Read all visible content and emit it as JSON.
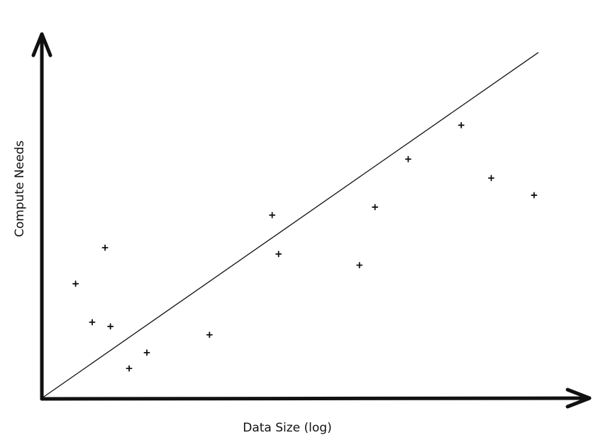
{
  "chart_data": {
    "type": "scatter",
    "xlabel": "Data Size (log)",
    "ylabel": "Compute Needs",
    "xlim": [
      0,
      100
    ],
    "ylim": [
      0,
      100
    ],
    "grid": false,
    "legend": "none",
    "ticks": false,
    "series": [
      {
        "values": [
          {
            "x": 6.3,
            "y": 32.7
          },
          {
            "x": 9.4,
            "y": 21.7
          },
          {
            "x": 11.8,
            "y": 43.0
          },
          {
            "x": 12.8,
            "y": 20.5
          },
          {
            "x": 16.3,
            "y": 8.5
          },
          {
            "x": 19.6,
            "y": 13.0
          },
          {
            "x": 31.3,
            "y": 18.1
          },
          {
            "x": 43.0,
            "y": 52.3
          },
          {
            "x": 44.2,
            "y": 41.2
          },
          {
            "x": 59.3,
            "y": 38.0
          },
          {
            "x": 62.2,
            "y": 54.6
          },
          {
            "x": 68.4,
            "y": 68.3
          },
          {
            "x": 78.3,
            "y": 78.0
          },
          {
            "x": 83.9,
            "y": 62.9
          },
          {
            "x": 91.9,
            "y": 58.0
          }
        ]
      }
    ],
    "trend_line": {
      "x": [
        0,
        92.7
      ],
      "y": [
        0,
        98.8
      ]
    },
    "colors": {
      "ink": "#111111",
      "background": "#ffffff"
    }
  }
}
